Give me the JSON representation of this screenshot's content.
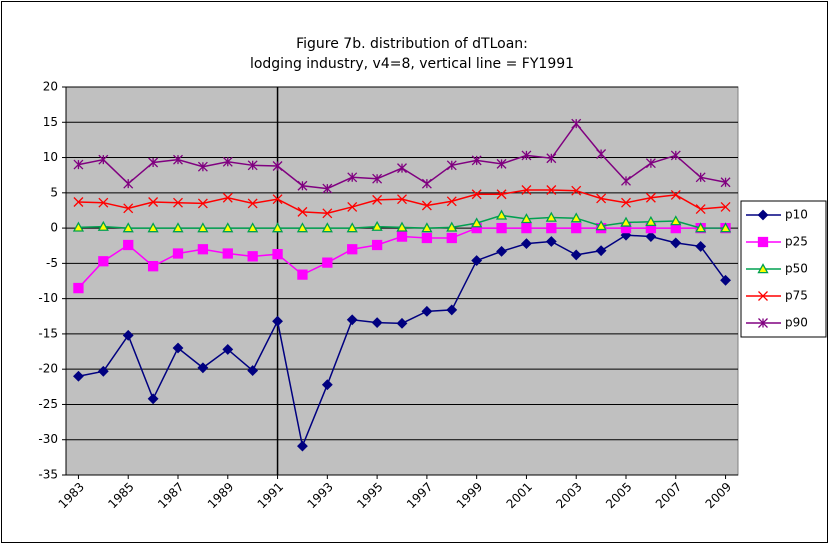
{
  "chart_data": {
    "type": "line",
    "title": "Figure 7b. distribution of dTLoan:",
    "subtitle": "lodging industry, v4=8, vertical line = FY1991",
    "x": [
      1983,
      1984,
      1985,
      1986,
      1987,
      1988,
      1989,
      1990,
      1991,
      1992,
      1993,
      1994,
      1995,
      1996,
      1997,
      1998,
      1999,
      2000,
      2001,
      2002,
      2003,
      2004,
      2005,
      2006,
      2007,
      2008,
      2009
    ],
    "xlim": [
      1982.5,
      2009.5
    ],
    "xticks": [
      1983,
      1985,
      1987,
      1989,
      1991,
      1993,
      1995,
      1997,
      1999,
      2001,
      2003,
      2005,
      2007,
      2009
    ],
    "ylim": [
      -35,
      20
    ],
    "yticks": [
      -35,
      -30,
      -25,
      -20,
      -15,
      -10,
      -5,
      0,
      5,
      10,
      15,
      20
    ],
    "grid": true,
    "vline": 1991,
    "legend": "right",
    "series": [
      {
        "name": "p10",
        "color": "#000080",
        "marker": "diamond",
        "marker_fill": "#000080",
        "values": [
          -21,
          -20.3,
          -15.2,
          -24.2,
          -17,
          -19.8,
          -17.2,
          -20.2,
          -13.2,
          -30.9,
          -22.2,
          -13,
          -13.4,
          -13.5,
          -11.8,
          -11.6,
          -4.6,
          -3.3,
          -2.2,
          -1.9,
          -3.8,
          -3.2,
          -1,
          -1.2,
          -2.1,
          -2.6,
          -7.4
        ]
      },
      {
        "name": "p25",
        "color": "#ff00ff",
        "marker": "square",
        "marker_fill": "#ff00ff",
        "values": [
          -8.5,
          -4.7,
          -2.4,
          -5.4,
          -3.6,
          -3.0,
          -3.6,
          -4.0,
          -3.7,
          -6.6,
          -4.9,
          -3.0,
          -2.4,
          -1.2,
          -1.4,
          -1.4,
          0,
          0,
          0,
          0,
          0,
          0,
          0,
          0,
          0,
          0,
          0
        ]
      },
      {
        "name": "p50",
        "color": "#00a050",
        "marker": "triangle",
        "marker_fill": "#ffff00",
        "values": [
          0.1,
          0.2,
          0,
          0,
          0,
          0,
          0,
          0,
          0,
          0,
          0,
          0,
          0.2,
          0.1,
          0,
          0.1,
          0.7,
          1.8,
          1.3,
          1.5,
          1.4,
          0.3,
          0.8,
          0.9,
          1.0,
          0,
          0
        ]
      },
      {
        "name": "p75",
        "color": "#ff0000",
        "marker": "x",
        "marker_fill": "none",
        "values": [
          3.7,
          3.6,
          2.8,
          3.7,
          3.6,
          3.5,
          4.3,
          3.5,
          4.1,
          2.3,
          2.1,
          3.0,
          4.0,
          4.1,
          3.2,
          3.8,
          4.8,
          4.8,
          5.4,
          5.4,
          5.3,
          4.2,
          3.6,
          4.3,
          4.7,
          2.7,
          3.0
        ]
      },
      {
        "name": "p90",
        "color": "#800080",
        "marker": "star",
        "marker_fill": "none",
        "values": [
          9.0,
          9.7,
          6.3,
          9.3,
          9.7,
          8.7,
          9.4,
          8.9,
          8.8,
          6.0,
          5.6,
          7.2,
          7.0,
          8.5,
          6.3,
          8.9,
          9.6,
          9.1,
          10.3,
          9.9,
          14.8,
          10.5,
          6.7,
          9.2,
          10.3,
          7.2,
          6.5
        ]
      }
    ]
  }
}
